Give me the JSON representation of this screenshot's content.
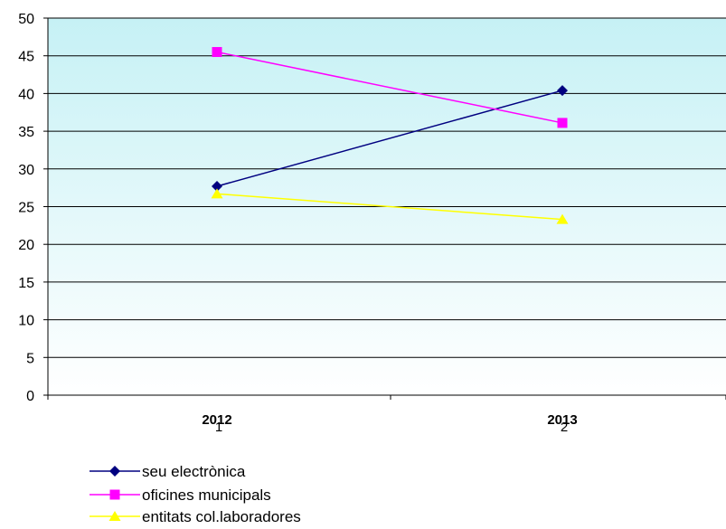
{
  "chart_data": {
    "type": "line",
    "categories": [
      "2012",
      "2013"
    ],
    "category_index_labels": [
      "1",
      "2"
    ],
    "ylim": [
      0,
      50
    ],
    "yticks": [
      0,
      5,
      10,
      15,
      20,
      25,
      30,
      35,
      40,
      45,
      50
    ],
    "grid": true,
    "legend_position": "bottom-left",
    "plot_background": "light cyan gradient",
    "series": [
      {
        "name": "seu electrònica",
        "values": [
          27.7,
          40.4
        ],
        "color": "#000080",
        "marker": "diamond"
      },
      {
        "name": "oficines municipals",
        "values": [
          45.5,
          36.1
        ],
        "color": "#ff00ff",
        "marker": "square"
      },
      {
        "name": "entitats col.laboradores",
        "values": [
          26.7,
          23.3
        ],
        "color": "#ffff00",
        "marker": "triangle"
      }
    ]
  }
}
